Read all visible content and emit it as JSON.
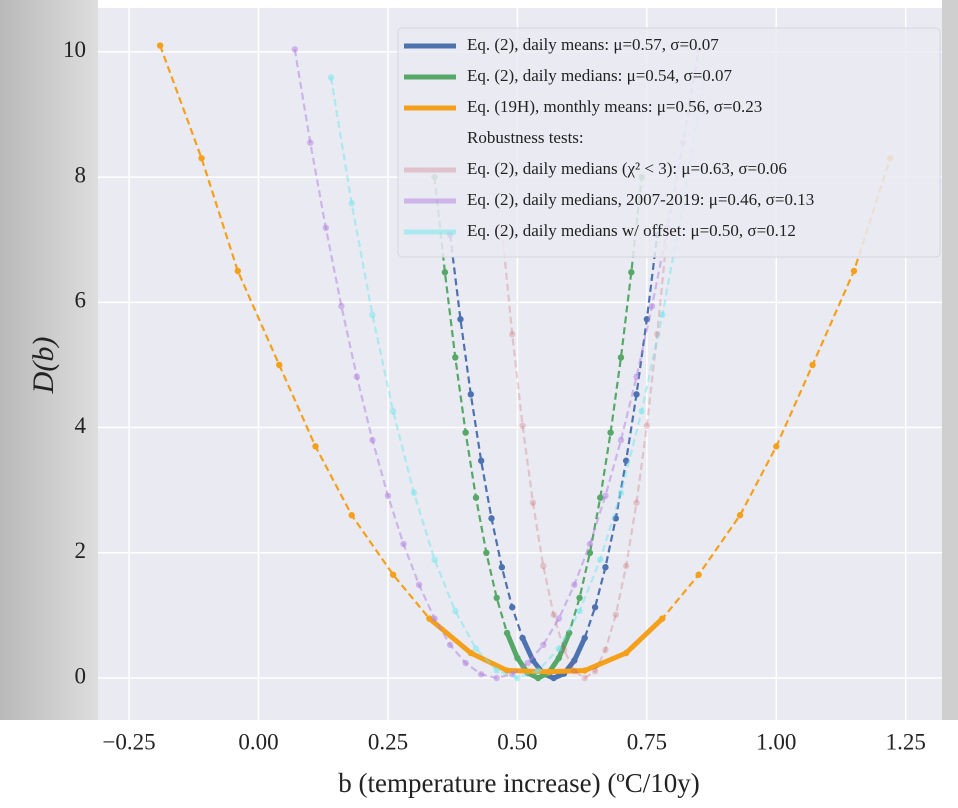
{
  "chart_data": {
    "type": "line",
    "xlabel": "b (temperature increase) (ºC/10y)",
    "ylabel": "D(b)",
    "xlim": [
      -0.31,
      1.32
    ],
    "ylim": [
      -0.67,
      10.7
    ],
    "xticks": [
      {
        "value": -0.25,
        "label": "−0.25"
      },
      {
        "value": 0,
        "label": "0.00"
      },
      {
        "value": 0.25,
        "label": "0.25"
      },
      {
        "value": 0.5,
        "label": "0.50"
      },
      {
        "value": 0.75,
        "label": "0.75"
      },
      {
        "value": 1,
        "label": "1.00"
      },
      {
        "value": 1.25,
        "label": "1.25"
      }
    ],
    "yticks": [
      0,
      2,
      4,
      6,
      8,
      10
    ],
    "grid": true,
    "legend": "upper right",
    "legend_note": "Robustness tests:",
    "series": [
      {
        "name": "Eq. (2), daily means: μ=0.57, σ=0.07",
        "color": "#4c72b0",
        "alpha": 1,
        "x": [
          0.37,
          0.39,
          0.41,
          0.43,
          0.45,
          0.47,
          0.49,
          0.51,
          0.53,
          0.55,
          0.57,
          0.59,
          0.61,
          0.63,
          0.65,
          0.67,
          0.69,
          0.71,
          0.73,
          0.75,
          0.77
        ],
        "values": [
          7.08,
          5.73,
          4.53,
          3.47,
          2.55,
          1.77,
          1.13,
          0.64,
          0.28,
          0.07,
          0,
          0.07,
          0.28,
          0.64,
          1.13,
          1.77,
          2.55,
          3.47,
          4.53,
          5.73,
          7.08
        ]
      },
      {
        "name": "Eq. (2), daily medians: μ=0.54, σ=0.07",
        "color": "#55a868",
        "alpha": 1,
        "x": [
          0.34,
          0.36,
          0.38,
          0.4,
          0.42,
          0.44,
          0.46,
          0.48,
          0.5,
          0.52,
          0.54,
          0.56,
          0.58,
          0.6,
          0.62,
          0.64,
          0.66,
          0.68,
          0.7,
          0.72,
          0.74
        ],
        "values": [
          8.0,
          6.48,
          5.12,
          3.92,
          2.88,
          2.0,
          1.28,
          0.72,
          0.32,
          0.08,
          0,
          0.08,
          0.32,
          0.72,
          1.28,
          2.0,
          2.88,
          3.92,
          5.12,
          6.48,
          8.0
        ]
      },
      {
        "name": "Eq. (19H), monthly means: μ=0.56, σ=0.23",
        "color": "#f5a01a",
        "alpha": 1,
        "x": [
          -0.19,
          -0.11,
          -0.04,
          0.04,
          0.11,
          0.18,
          0.26,
          0.33,
          0.41,
          0.48,
          0.56,
          0.63,
          0.71,
          0.78,
          0.85,
          0.93,
          1.0,
          1.07,
          1.15,
          1.22
        ],
        "values": [
          10.1,
          8.3,
          6.5,
          5.0,
          3.7,
          2.6,
          1.65,
          0.95,
          0.4,
          0.12,
          0.1,
          0.12,
          0.4,
          0.95,
          1.65,
          2.6,
          3.7,
          5.0,
          6.5,
          8.3
        ]
      },
      {
        "name": "Eq. (2), daily medians (χ² < 3): μ=0.63, σ=0.06",
        "color": "#c44e52",
        "alpha": 0.25,
        "x": [
          0.47,
          0.49,
          0.51,
          0.53,
          0.55,
          0.57,
          0.59,
          0.61,
          0.63,
          0.65,
          0.67,
          0.69,
          0.71,
          0.73,
          0.75,
          0.77,
          0.79
        ],
        "values": [
          7.17,
          5.49,
          4.03,
          2.8,
          1.79,
          1.01,
          0.45,
          0.11,
          0,
          0.11,
          0.45,
          1.01,
          1.79,
          2.8,
          4.03,
          5.49,
          7.17
        ]
      },
      {
        "name": "Eq. (2), daily medians, 2007-2019: μ=0.46, σ=0.13",
        "color": "#b07ee0",
        "alpha": 0.5,
        "x": [
          0.07,
          0.1,
          0.13,
          0.16,
          0.19,
          0.22,
          0.25,
          0.28,
          0.31,
          0.34,
          0.37,
          0.4,
          0.43,
          0.46,
          0.49,
          0.52,
          0.55,
          0.58,
          0.61,
          0.64,
          0.67,
          0.7,
          0.73,
          0.76,
          0.79,
          0.82,
          0.85
        ],
        "values": [
          10.04,
          8.55,
          7.19,
          5.94,
          4.81,
          3.8,
          2.91,
          2.14,
          1.49,
          0.95,
          0.53,
          0.24,
          0.06,
          0,
          0.06,
          0.24,
          0.53,
          0.95,
          1.49,
          2.14,
          2.91,
          3.8,
          4.81,
          5.94,
          7.19,
          8.55,
          10.04
        ]
      },
      {
        "name": "Eq. (2), daily medians w/ offset: μ=0.50, σ=0.12",
        "color": "#6ee6ee",
        "alpha": 0.5,
        "x": [
          0.14,
          0.18,
          0.22,
          0.26,
          0.3,
          0.34,
          0.38,
          0.42,
          0.46,
          0.5,
          0.54,
          0.58,
          0.62,
          0.66,
          0.7,
          0.74,
          0.78,
          0.82,
          0.86
        ],
        "values": [
          9.59,
          7.58,
          5.8,
          4.26,
          2.96,
          1.89,
          1.07,
          0.47,
          0.12,
          0,
          0.12,
          0.47,
          1.07,
          1.89,
          2.96,
          4.26,
          5.8,
          7.58,
          9.59
        ]
      }
    ]
  }
}
